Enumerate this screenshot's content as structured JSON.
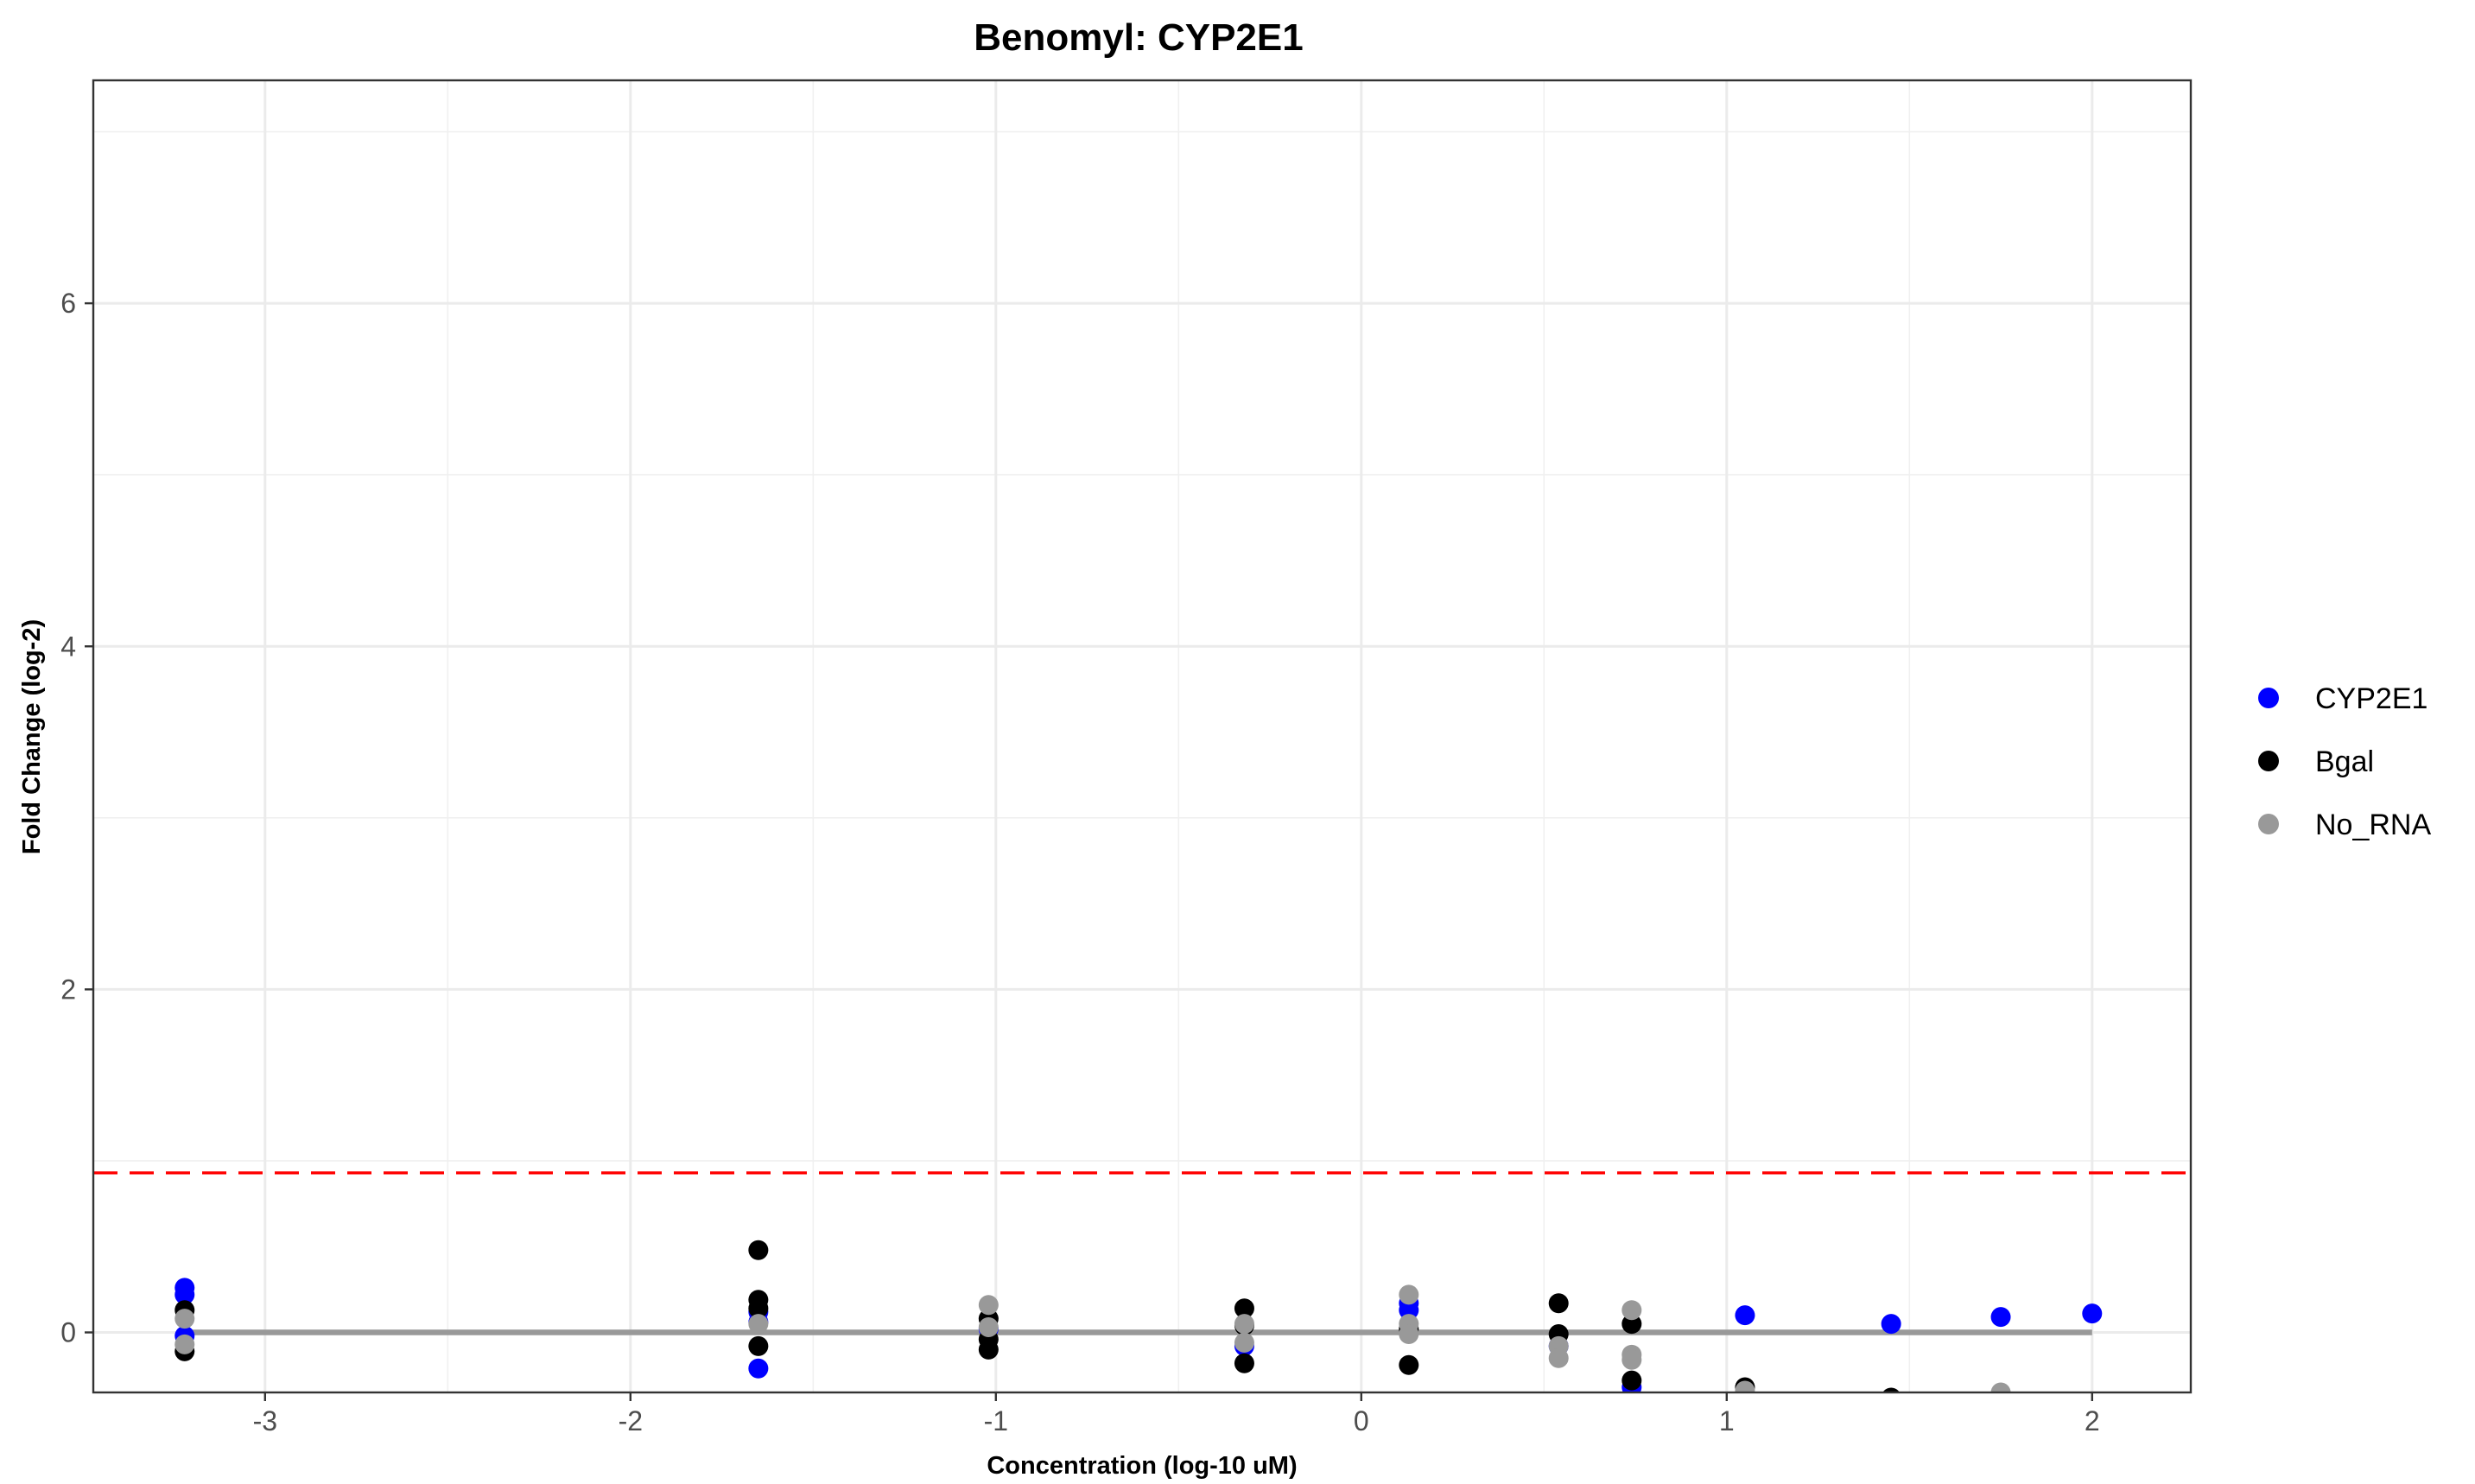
{
  "chart_data": {
    "type": "scatter",
    "title": "Benomyl: CYP2E1",
    "xlabel": "Concentration (log-10 uM)",
    "ylabel": "Fold Change (log-2)",
    "xlim": [
      -3.47,
      2.27
    ],
    "ylim": [
      -0.35,
      7.3
    ],
    "x_ticks": [
      -3,
      -2,
      -1,
      0,
      1,
      2
    ],
    "y_ticks": [
      0,
      2,
      4,
      6
    ],
    "grid": true,
    "legend_position": "right",
    "reference_lines": [
      {
        "type": "hline",
        "y": 0.93,
        "color": "#ff0000",
        "style": "dashed"
      },
      {
        "type": "segment",
        "x": [
          -3.22,
          2.0
        ],
        "y": 0,
        "color": "#999999",
        "style": "solid"
      }
    ],
    "series": [
      {
        "name": "CYP2E1",
        "color": "#0000ff",
        "points": [
          [
            -3.22,
            0.26
          ],
          [
            -3.22,
            0.22
          ],
          [
            -3.22,
            -0.02
          ],
          [
            -1.65,
            0.12
          ],
          [
            -1.65,
            0.06
          ],
          [
            -1.65,
            -0.21
          ],
          [
            -1.02,
            0.02
          ],
          [
            -0.32,
            -0.08
          ],
          [
            0.13,
            0.17
          ],
          [
            0.13,
            0.13
          ],
          [
            0.54,
            -0.08
          ],
          [
            0.74,
            -0.32
          ],
          [
            1.05,
            0.1
          ],
          [
            1.45,
            0.05
          ],
          [
            1.75,
            0.09
          ],
          [
            2.0,
            0.11
          ]
        ]
      },
      {
        "name": "Bgal",
        "color": "#000000",
        "points": [
          [
            -3.22,
            0.13
          ],
          [
            -3.22,
            -0.11
          ],
          [
            -1.65,
            0.48
          ],
          [
            -1.65,
            0.19
          ],
          [
            -1.65,
            0.14
          ],
          [
            -1.65,
            -0.08
          ],
          [
            -1.02,
            0.08
          ],
          [
            -1.02,
            -0.04
          ],
          [
            -1.02,
            -0.1
          ],
          [
            -0.32,
            0.14
          ],
          [
            -0.32,
            0.04
          ],
          [
            -0.32,
            -0.18
          ],
          [
            0.13,
            -0.19
          ],
          [
            0.13,
            0.02
          ],
          [
            0.54,
            0.17
          ],
          [
            0.54,
            -0.01
          ],
          [
            0.74,
            0.05
          ],
          [
            0.74,
            -0.28
          ],
          [
            1.05,
            -0.32
          ],
          [
            1.45,
            -0.38
          ]
        ]
      },
      {
        "name": "No_RNA",
        "color": "#999999",
        "points": [
          [
            -3.22,
            0.08
          ],
          [
            -3.22,
            -0.07
          ],
          [
            -1.65,
            0.05
          ],
          [
            -1.02,
            0.16
          ],
          [
            -1.02,
            0.03
          ],
          [
            -0.32,
            0.05
          ],
          [
            -0.32,
            -0.06
          ],
          [
            0.13,
            0.22
          ],
          [
            0.13,
            0.05
          ],
          [
            0.13,
            -0.01
          ],
          [
            0.54,
            -0.08
          ],
          [
            0.54,
            -0.15
          ],
          [
            0.74,
            0.13
          ],
          [
            0.74,
            -0.13
          ],
          [
            0.74,
            -0.16
          ],
          [
            1.05,
            -0.34
          ],
          [
            1.75,
            -0.35
          ]
        ]
      }
    ]
  }
}
